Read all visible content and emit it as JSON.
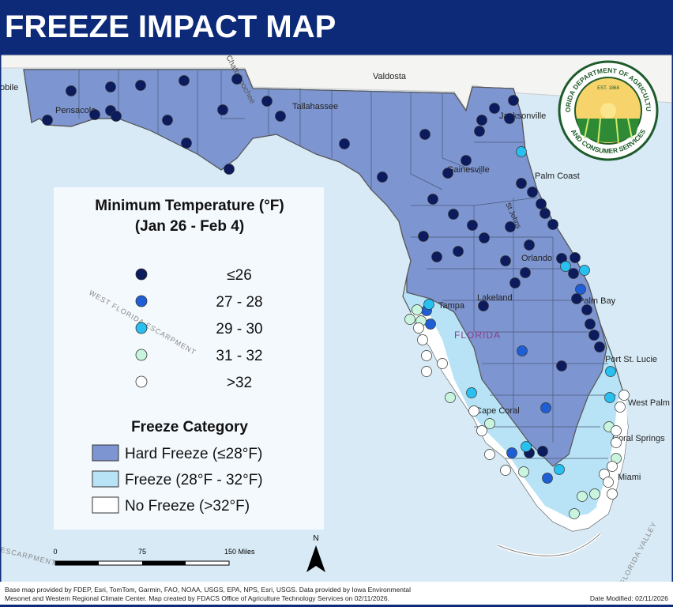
{
  "header": {
    "title": "FREEZE IMPACT MAP"
  },
  "map": {
    "labels": [
      "obile",
      "Pensacola",
      "Tallahassee",
      "Valdosta",
      "Jacksonville",
      "Gainesville",
      "Palm Coast",
      "St Johns",
      "Orlando",
      "Tampa",
      "Lakeland",
      "FLORIDA",
      "Palm Bay",
      "Port St. Lucie",
      "West Palm",
      "Cape Coral",
      "Coral Springs",
      "Miami",
      "Chattahoochee",
      "WEST FLORIDA ESCARPMENT",
      "ESCARPMENT",
      "FLORIDA VALLEY"
    ]
  },
  "logo": {
    "top": "FLORIDA DEPARTMENT OF AGRICULTURE",
    "bottom": "AND CONSUMER SERVICES",
    "est": "EST. 1868"
  },
  "legend": {
    "temp_title": [
      "Minimum Temperature (°F)",
      "(Jan 26 - Feb 4)"
    ],
    "temp_items": [
      "≤26",
      "27 - 28",
      "29 - 30",
      "31 - 32",
      ">32"
    ],
    "freeze_title": "Freeze Category",
    "freeze_items": [
      "Hard Freeze (≤28°F)",
      "Freeze (28°F - 32°F)",
      "No Freeze (>32°F)"
    ]
  },
  "scale": {
    "labels": [
      "0",
      "75",
      "150 Miles"
    ],
    "north": "N"
  },
  "footer": {
    "credits": [
      "Base map provided by FDEP, Esri, TomTom, Garmin, FAO, NOAA, USGS, EPA, NPS, Esri, USGS. Data provided by Iowa Environmental",
      "Mesonet and Western Regional Climate Center. Map created by FDACS Office of Agriculture Technology Services on 02/11/2026."
    ],
    "date": "Date Modified: 02/11/2026"
  }
}
